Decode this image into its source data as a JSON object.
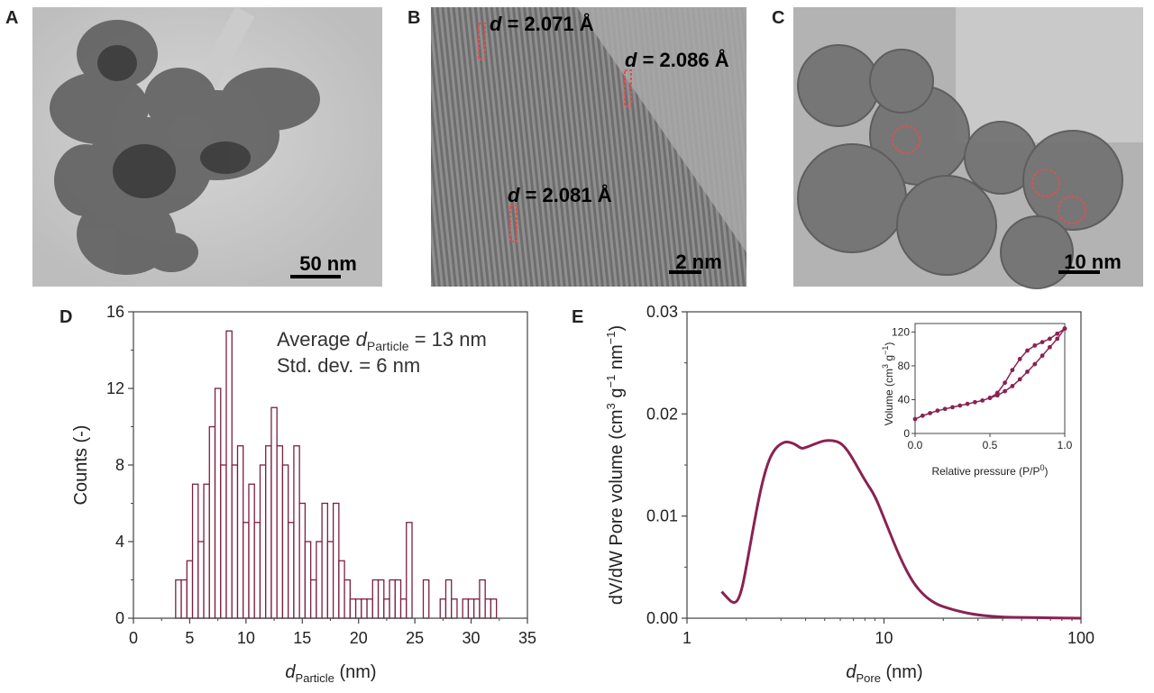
{
  "panels": [
    {
      "letter": "A",
      "scale_bar": "50 nm"
    },
    {
      "letter": "B",
      "scale_bar": "2 nm",
      "d_spacings": [
        {
          "sym": "d",
          "rest": " = 2.071 Å"
        },
        {
          "sym": "d",
          "rest": " = 2.086 Å"
        },
        {
          "sym": "d",
          "rest": " = 2.081 Å"
        }
      ]
    },
    {
      "letter": "C",
      "scale_bar": "10 nm"
    },
    {
      "letter": "D"
    },
    {
      "letter": "E"
    }
  ],
  "colors": {
    "series": "#8a2252",
    "histogram": "#7a2040",
    "lattice_marker": "#e05050"
  },
  "chart_data": [
    {
      "type": "bar",
      "panel": "D",
      "subtype": "histogram",
      "bin_width": 0.5,
      "bins": [
        {
          "x": 4.0,
          "y": 2
        },
        {
          "x": 4.5,
          "y": 2
        },
        {
          "x": 5.0,
          "y": 3
        },
        {
          "x": 5.5,
          "y": 7
        },
        {
          "x": 6.0,
          "y": 4
        },
        {
          "x": 6.5,
          "y": 7
        },
        {
          "x": 7.0,
          "y": 10
        },
        {
          "x": 7.5,
          "y": 12
        },
        {
          "x": 8.0,
          "y": 8
        },
        {
          "x": 8.5,
          "y": 15
        },
        {
          "x": 9.0,
          "y": 8
        },
        {
          "x": 9.5,
          "y": 9
        },
        {
          "x": 10.0,
          "y": 5
        },
        {
          "x": 10.5,
          "y": 7
        },
        {
          "x": 11.0,
          "y": 5
        },
        {
          "x": 11.5,
          "y": 8
        },
        {
          "x": 12.0,
          "y": 9
        },
        {
          "x": 12.5,
          "y": 11
        },
        {
          "x": 13.0,
          "y": 9
        },
        {
          "x": 13.5,
          "y": 8
        },
        {
          "x": 14.0,
          "y": 5
        },
        {
          "x": 14.5,
          "y": 9
        },
        {
          "x": 15.0,
          "y": 6
        },
        {
          "x": 15.5,
          "y": 4
        },
        {
          "x": 16.0,
          "y": 2
        },
        {
          "x": 16.5,
          "y": 4
        },
        {
          "x": 17.0,
          "y": 6
        },
        {
          "x": 17.5,
          "y": 4
        },
        {
          "x": 18.0,
          "y": 6
        },
        {
          "x": 18.5,
          "y": 3
        },
        {
          "x": 19.0,
          "y": 2
        },
        {
          "x": 19.5,
          "y": 1
        },
        {
          "x": 20.0,
          "y": 1
        },
        {
          "x": 20.5,
          "y": 1
        },
        {
          "x": 21.0,
          "y": 1
        },
        {
          "x": 21.5,
          "y": 2
        },
        {
          "x": 22.0,
          "y": 2
        },
        {
          "x": 22.5,
          "y": 1
        },
        {
          "x": 23.0,
          "y": 2
        },
        {
          "x": 23.5,
          "y": 2
        },
        {
          "x": 24.0,
          "y": 1
        },
        {
          "x": 24.5,
          "y": 5
        },
        {
          "x": 25.0,
          "y": 0
        },
        {
          "x": 25.5,
          "y": 0
        },
        {
          "x": 26.0,
          "y": 2
        },
        {
          "x": 26.5,
          "y": 0
        },
        {
          "x": 27.0,
          "y": 0
        },
        {
          "x": 27.5,
          "y": 1
        },
        {
          "x": 28.0,
          "y": 2
        },
        {
          "x": 28.5,
          "y": 1
        },
        {
          "x": 29.0,
          "y": 0
        },
        {
          "x": 29.5,
          "y": 1
        },
        {
          "x": 30.0,
          "y": 1
        },
        {
          "x": 30.5,
          "y": 1
        },
        {
          "x": 31.0,
          "y": 2
        },
        {
          "x": 31.5,
          "y": 1
        },
        {
          "x": 32.0,
          "y": 1
        }
      ],
      "xlim": [
        0,
        35
      ],
      "ylim": [
        0,
        16
      ],
      "xticks": [
        "0",
        "5",
        "10",
        "15",
        "20",
        "25",
        "30",
        "35"
      ],
      "yticks": [
        "0",
        "4",
        "8",
        "12",
        "16"
      ],
      "xlabel": {
        "sym": "d",
        "sub": "Particle",
        "unit": " (nm)"
      },
      "ylabel": "Counts (-)",
      "annotation": {
        "line1_prefix": "Average ",
        "line1_sym": "d",
        "line1_sub": "Particle",
        "line1_suffix": " = 13 nm",
        "line2": "Std. dev. = 6 nm"
      }
    },
    {
      "type": "line",
      "panel": "E",
      "xscale": "log",
      "xlim": [
        1,
        100
      ],
      "ylim": [
        0,
        0.03
      ],
      "xticks": [
        "1",
        "10",
        "100"
      ],
      "yticks": [
        "0.00",
        "0.01",
        "0.02",
        "0.03"
      ],
      "xlabel": {
        "sym": "d",
        "sub": "Pore",
        "unit": " (nm)"
      },
      "ylabel": {
        "main": "dV/dW Pore volume (cm",
        "sup1": "3",
        "mid1": " g",
        "sup2": "−1",
        "mid2": " nm",
        "sup3": "−1",
        "end": ")"
      },
      "points": [
        [
          1.5,
          0.0026
        ],
        [
          1.6,
          0.002
        ],
        [
          1.7,
          0.0015
        ],
        [
          1.8,
          0.0016
        ],
        [
          1.9,
          0.0028
        ],
        [
          2.0,
          0.005
        ],
        [
          2.2,
          0.0095
        ],
        [
          2.4,
          0.0132
        ],
        [
          2.6,
          0.0155
        ],
        [
          2.8,
          0.0166
        ],
        [
          3.0,
          0.0171
        ],
        [
          3.2,
          0.0173
        ],
        [
          3.5,
          0.0171
        ],
        [
          3.8,
          0.0166
        ],
        [
          4.0,
          0.0167
        ],
        [
          4.5,
          0.0171
        ],
        [
          5.0,
          0.0174
        ],
        [
          5.5,
          0.0174
        ],
        [
          6.0,
          0.0172
        ],
        [
          6.5,
          0.0165
        ],
        [
          7.0,
          0.0155
        ],
        [
          8.0,
          0.0135
        ],
        [
          9.0,
          0.012
        ],
        [
          10.0,
          0.0098
        ],
        [
          12.0,
          0.006
        ],
        [
          14.0,
          0.0035
        ],
        [
          16.0,
          0.0022
        ],
        [
          18.0,
          0.0015
        ],
        [
          20.0,
          0.0011
        ],
        [
          25.0,
          0.0006
        ],
        [
          30.0,
          0.0003
        ],
        [
          40.0,
          0.0001
        ],
        [
          60.0,
          5e-05
        ],
        [
          100.0,
          0.0
        ]
      ],
      "inset": {
        "type": "line",
        "xlim": [
          0,
          1
        ],
        "ylim": [
          0,
          130
        ],
        "xticks": [
          "0.0",
          "0.5",
          "1.0"
        ],
        "yticks": [
          "0",
          "40",
          "80",
          "120"
        ],
        "xlabel": {
          "main": "Relative pressure (P/P",
          "sup": "0",
          "end": ")"
        },
        "ylabel": {
          "main": "Volume (cm",
          "sup1": "3",
          "mid": " g",
          "sup2": "−1",
          "end": ")"
        },
        "adsorption": [
          [
            0.0,
            17
          ],
          [
            0.05,
            21
          ],
          [
            0.1,
            24
          ],
          [
            0.15,
            27
          ],
          [
            0.2,
            29
          ],
          [
            0.25,
            31
          ],
          [
            0.3,
            33
          ],
          [
            0.35,
            35
          ],
          [
            0.4,
            37
          ],
          [
            0.45,
            39
          ],
          [
            0.5,
            42
          ],
          [
            0.55,
            45
          ],
          [
            0.6,
            50
          ],
          [
            0.65,
            56
          ],
          [
            0.7,
            64
          ],
          [
            0.75,
            73
          ],
          [
            0.8,
            82
          ],
          [
            0.85,
            92
          ],
          [
            0.9,
            102
          ],
          [
            0.95,
            112
          ],
          [
            1.0,
            124
          ]
        ],
        "desorption": [
          [
            1.0,
            124
          ],
          [
            0.95,
            118
          ],
          [
            0.9,
            112
          ],
          [
            0.85,
            108
          ],
          [
            0.8,
            104
          ],
          [
            0.75,
            98
          ],
          [
            0.7,
            88
          ],
          [
            0.65,
            75
          ],
          [
            0.6,
            60
          ],
          [
            0.55,
            48
          ],
          [
            0.5,
            42
          ]
        ]
      }
    }
  ]
}
